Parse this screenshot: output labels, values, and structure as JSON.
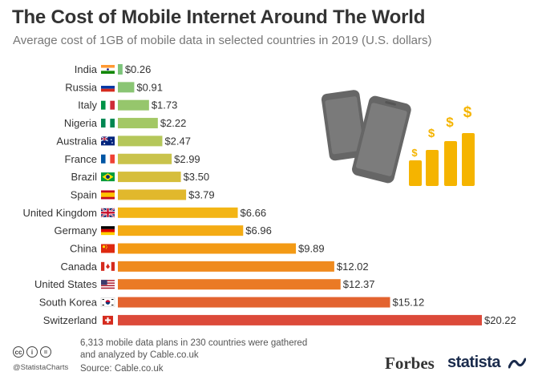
{
  "header": {
    "title": "The Cost of Mobile Internet Around The World",
    "subtitle": "Average cost of 1GB of mobile data in selected countries in 2019 (U.S. dollars)"
  },
  "chart_data": {
    "type": "bar",
    "orientation": "horizontal",
    "categories": [
      "India",
      "Russia",
      "Italy",
      "Nigeria",
      "Australia",
      "France",
      "Brazil",
      "Spain",
      "United Kingdom",
      "Germany",
      "China",
      "Canada",
      "United States",
      "South Korea",
      "Switzerland"
    ],
    "values": [
      0.26,
      0.91,
      1.73,
      2.22,
      2.47,
      2.99,
      3.5,
      3.79,
      6.66,
      6.96,
      9.89,
      12.02,
      12.37,
      15.12,
      20.22
    ],
    "value_labels": [
      "$0.26",
      "$0.91",
      "$1.73",
      "$2.22",
      "$2.47",
      "$2.99",
      "$3.50",
      "$3.79",
      "$6.66",
      "$6.96",
      "$9.89",
      "$12.02",
      "$12.37",
      "$15.12",
      "$20.22"
    ],
    "bar_colors": [
      "#7cc47a",
      "#8ac574",
      "#96c66c",
      "#a3c865",
      "#b5c75a",
      "#c9c34c",
      "#d6be3c",
      "#e1b82c",
      "#f3b515",
      "#f4ab14",
      "#f39a15",
      "#ef8a1e",
      "#ea7a25",
      "#e3632f",
      "#dc4a3a"
    ],
    "flags": [
      "india",
      "russia",
      "italy",
      "nigeria",
      "australia",
      "france",
      "brazil",
      "spain",
      "united-kingdom",
      "germany",
      "china",
      "canada",
      "united-states",
      "south-korea",
      "switzerland"
    ],
    "xlim": [
      0,
      20.22
    ],
    "grid": false,
    "legend": "none"
  },
  "illustration": {
    "phone_color": "#666666",
    "coin_color": "#f5b400",
    "coin_symbols": [
      "$",
      "$",
      "$",
      "$"
    ]
  },
  "footer": {
    "note": "6,313 mobile data plans in 230 countries were gathered and analyzed by Cable.co.uk",
    "source": "Source: Cable.co.uk",
    "handle": "@StatistaCharts",
    "cc_icons": [
      "cc",
      "i",
      "="
    ],
    "forbes": "Forbes",
    "statista": "statista"
  }
}
